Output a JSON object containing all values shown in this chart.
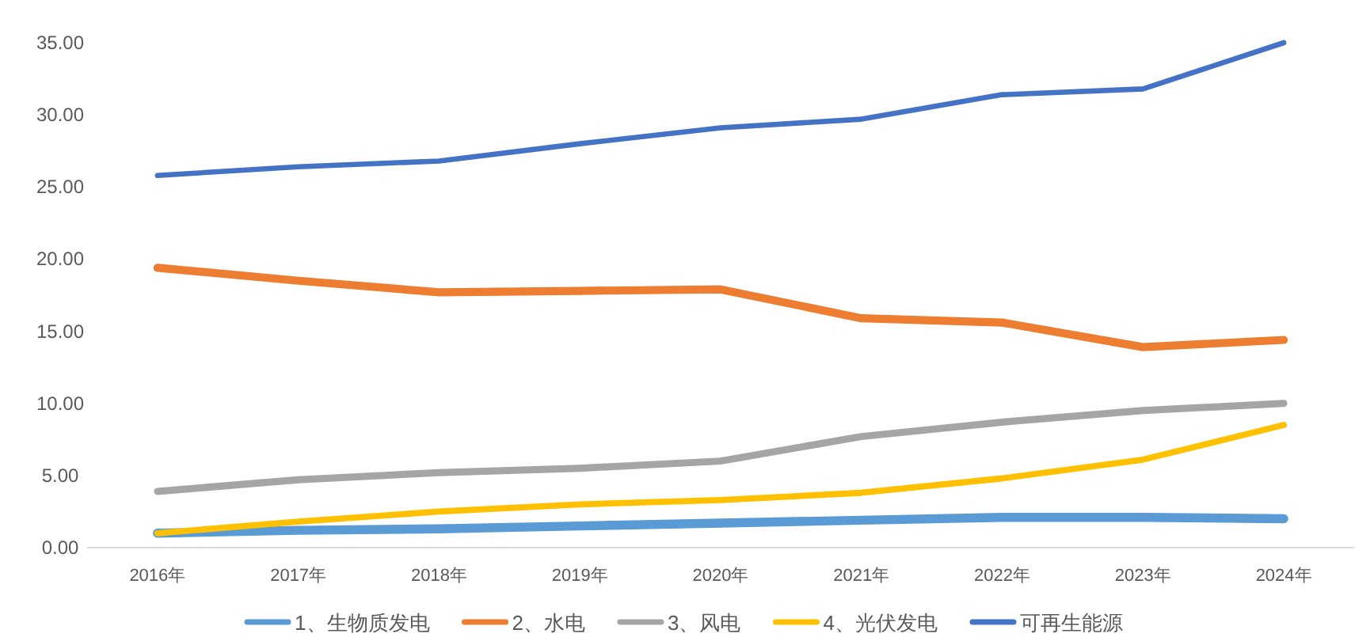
{
  "chart_data": {
    "type": "line",
    "categories": [
      "2016年",
      "2017年",
      "2018年",
      "2019年",
      "2020年",
      "2021年",
      "2022年",
      "2023年",
      "2024年"
    ],
    "series": [
      {
        "name": "1、生物质发电",
        "color": "#5b9bd5",
        "values": [
          1.0,
          1.2,
          1.3,
          1.5,
          1.7,
          1.9,
          2.1,
          2.1,
          2.0
        ]
      },
      {
        "name": "2、水电",
        "color": "#ed7d31",
        "values": [
          19.4,
          18.5,
          17.7,
          17.8,
          17.9,
          15.9,
          15.6,
          13.9,
          14.4
        ]
      },
      {
        "name": "3、风电",
        "color": "#a5a5a5",
        "values": [
          3.9,
          4.7,
          5.2,
          5.5,
          6.0,
          7.7,
          8.7,
          9.5,
          10.0
        ]
      },
      {
        "name": "4、光伏发电",
        "color": "#ffc000",
        "values": [
          1.0,
          1.8,
          2.5,
          3.0,
          3.3,
          3.8,
          4.8,
          6.1,
          8.5
        ]
      },
      {
        "name": "可再生能源",
        "color": "#4472c4",
        "values": [
          25.8,
          26.4,
          26.8,
          28.0,
          29.1,
          29.7,
          31.4,
          31.8,
          35.0
        ]
      }
    ],
    "ylim": [
      0,
      35
    ],
    "yticks": [
      {
        "value": 0,
        "label": "0.00"
      },
      {
        "value": 5,
        "label": "5.00"
      },
      {
        "value": 10,
        "label": "10.00"
      },
      {
        "value": 15,
        "label": "15.00"
      },
      {
        "value": 20,
        "label": "20.00"
      },
      {
        "value": 25,
        "label": "25.00"
      },
      {
        "value": 30,
        "label": "30.00"
      },
      {
        "value": 35,
        "label": "35.00"
      }
    ],
    "grid": false,
    "legend": "bottom",
    "marker": "none",
    "line_style": "solid"
  }
}
